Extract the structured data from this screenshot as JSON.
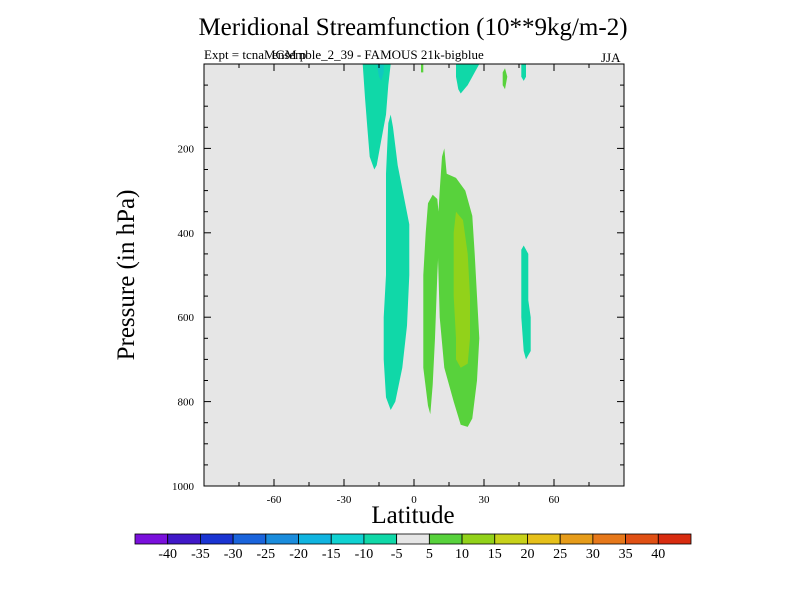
{
  "chart_data": {
    "type": "contour",
    "title": "Meridional Streamfunction (10**9kg/m-2)",
    "subtitle": "Expt = tcnaMGM p",
    "subtitle_overlap": "ensemble_2_39 - FAMOUS 21k-bigblue",
    "season": "JJA",
    "xlabel": "Latitude",
    "ylabel": "Pressure (in hPa)",
    "xlim": [
      -90,
      90
    ],
    "ylim": [
      1000,
      0
    ],
    "x_ticks": [
      -60,
      -30,
      0,
      30,
      60
    ],
    "x_tick_labels": [
      "-60",
      "-30",
      "0",
      "30",
      "60"
    ],
    "y_ticks": [
      200,
      400,
      600,
      800,
      1000
    ],
    "y_tick_labels": [
      "200",
      "400",
      "600",
      "800",
      "1000"
    ],
    "background_color": "#e6e6e6",
    "colorbar": {
      "colors": [
        "#7a10dc",
        "#4018c8",
        "#1a34d2",
        "#1a64dc",
        "#1a8cdc",
        "#10b4e0",
        "#10d2d2",
        "#10d8a8",
        "#e6e6e6",
        "#58d23c",
        "#92d21a",
        "#c8d21a",
        "#e6c01a",
        "#e69c1a",
        "#e6781a",
        "#e05014",
        "#d82c10"
      ],
      "labels": [
        "-40",
        "-35",
        "-30",
        "-25",
        "-20",
        "-15",
        "-10",
        "-5",
        "5",
        "10",
        "15",
        "20",
        "25",
        "30",
        "35",
        "40"
      ]
    },
    "regions": [
      {
        "level": "-10 to -5",
        "color": "#10d8a8",
        "points": [
          [
            -22,
            0
          ],
          [
            -10,
            0
          ],
          [
            -11,
            50
          ],
          [
            -12,
            120
          ],
          [
            -14,
            180
          ],
          [
            -16,
            240
          ],
          [
            -17,
            250
          ],
          [
            -19,
            220
          ],
          [
            -20,
            150
          ],
          [
            -21,
            80
          ]
        ]
      },
      {
        "level": "-15 to -10",
        "color": "#10c8c0",
        "points": [
          [
            -16,
            0
          ],
          [
            -13,
            0
          ],
          [
            -13,
            20
          ],
          [
            -14,
            40
          ],
          [
            -15,
            30
          ]
        ]
      },
      {
        "level": "-10 to -5",
        "color": "#10d8a8",
        "points": [
          [
            -12,
            260
          ],
          [
            -11,
            140
          ],
          [
            -10,
            120
          ],
          [
            -9,
            150
          ],
          [
            -7,
            240
          ],
          [
            -2,
            380
          ],
          [
            -2,
            500
          ],
          [
            -3,
            620
          ],
          [
            -5,
            720
          ],
          [
            -8,
            800
          ],
          [
            -10,
            820
          ],
          [
            -12,
            790
          ],
          [
            -13,
            700
          ],
          [
            -13,
            600
          ],
          [
            -12,
            500
          ],
          [
            -12,
            400
          ],
          [
            -12,
            320
          ]
        ]
      },
      {
        "level": "-10 to -5",
        "color": "#10d8a8",
        "points": [
          [
            18,
            0
          ],
          [
            28,
            0
          ],
          [
            26,
            20
          ],
          [
            23,
            50
          ],
          [
            20,
            70
          ],
          [
            19,
            60
          ],
          [
            18,
            30
          ]
        ]
      },
      {
        "level": "-10 to -5",
        "color": "#10d8a8",
        "points": [
          [
            46,
            0
          ],
          [
            48,
            0
          ],
          [
            48,
            30
          ],
          [
            47,
            40
          ],
          [
            46,
            30
          ]
        ]
      },
      {
        "level": "-10 to -5",
        "color": "#10d8a8",
        "points": [
          [
            46,
            440
          ],
          [
            47,
            430
          ],
          [
            49,
            450
          ],
          [
            49,
            500
          ],
          [
            49,
            560
          ],
          [
            50,
            600
          ],
          [
            50,
            640
          ],
          [
            50,
            680
          ],
          [
            49,
            690
          ],
          [
            48,
            700
          ],
          [
            47,
            680
          ],
          [
            46,
            600
          ]
        ]
      },
      {
        "level": "5 to 10",
        "color": "#58d23c",
        "points": [
          [
            3,
            0
          ],
          [
            4,
            0
          ],
          [
            4,
            20
          ],
          [
            3,
            20
          ]
        ]
      },
      {
        "level": "5 to 10",
        "color": "#58d23c",
        "points": [
          [
            6,
            330
          ],
          [
            8,
            310
          ],
          [
            10,
            320
          ],
          [
            11,
            380
          ],
          [
            10,
            500
          ],
          [
            9,
            650
          ],
          [
            8,
            760
          ],
          [
            7,
            830
          ],
          [
            6,
            810
          ],
          [
            4,
            720
          ],
          [
            4,
            600
          ],
          [
            4,
            500
          ],
          [
            5,
            400
          ]
        ]
      },
      {
        "level": "5 to 10",
        "color": "#58d23c",
        "points": [
          [
            13,
            200
          ],
          [
            14,
            260
          ],
          [
            18,
            270
          ],
          [
            22,
            300
          ],
          [
            25,
            360
          ],
          [
            26,
            450
          ],
          [
            27,
            550
          ],
          [
            28,
            650
          ],
          [
            27,
            750
          ],
          [
            25,
            840
          ],
          [
            23,
            860
          ],
          [
            20,
            855
          ],
          [
            17,
            800
          ],
          [
            13,
            720
          ],
          [
            11,
            600
          ],
          [
            10,
            400
          ],
          [
            11,
            300
          ],
          [
            12,
            220
          ]
        ]
      },
      {
        "level": "10 to 15",
        "color": "#92d21a",
        "points": [
          [
            18,
            350
          ],
          [
            21,
            370
          ],
          [
            23,
            450
          ],
          [
            24,
            550
          ],
          [
            24,
            650
          ],
          [
            23,
            710
          ],
          [
            20,
            720
          ],
          [
            18,
            700
          ],
          [
            18,
            650
          ],
          [
            17,
            550
          ],
          [
            17,
            450
          ],
          [
            17,
            400
          ]
        ]
      },
      {
        "level": "5 to 10",
        "color": "#58d23c",
        "points": [
          [
            38,
            20
          ],
          [
            39,
            10
          ],
          [
            40,
            30
          ],
          [
            39,
            60
          ],
          [
            38,
            50
          ]
        ]
      }
    ]
  }
}
